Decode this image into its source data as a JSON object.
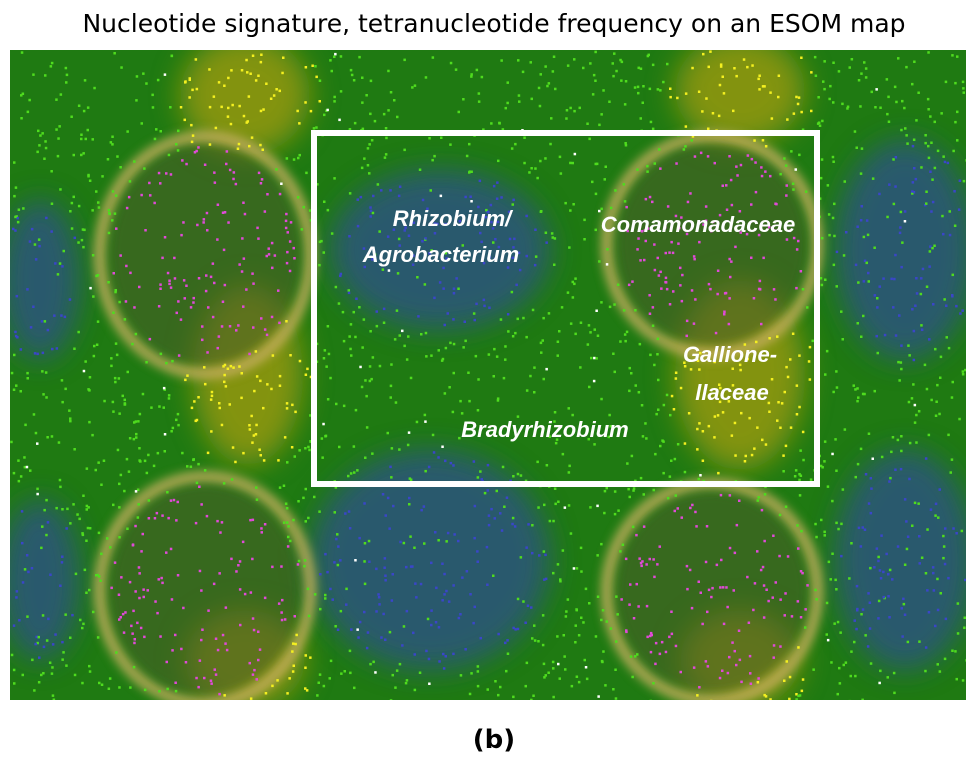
{
  "figure": {
    "title": "Nucleotide signature, tetranucleotide frequency on an ESOM map",
    "labels": [
      {
        "lines": [
          "Rhizobium/",
          "Agrobacterium"
        ]
      },
      {
        "lines": [
          "Comamonadaceae"
        ]
      },
      {
        "lines": [
          "Gallione-",
          "llaceae"
        ]
      },
      {
        "lines": [
          "Bradyrhizobium"
        ]
      }
    ],
    "caption": "(b)"
  }
}
